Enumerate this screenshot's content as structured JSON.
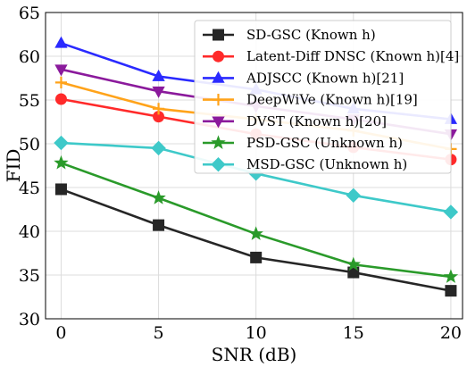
{
  "chart_data": {
    "type": "line",
    "xlabel": "SNR (dB)",
    "ylabel": "FID",
    "xlim": [
      -0.8,
      20.6
    ],
    "ylim": [
      30,
      65
    ],
    "x": [
      0,
      5,
      10,
      15,
      20
    ],
    "xticks": [
      0,
      5,
      10,
      15,
      20
    ],
    "yticks": [
      30,
      35,
      40,
      45,
      50,
      55,
      60,
      65
    ],
    "grid": true,
    "legend_position": "top-right",
    "series": [
      {
        "name": "SD-GSC (Known h)",
        "values": [
          44.8,
          40.7,
          37.0,
          35.3,
          33.2
        ],
        "color": "#262626",
        "marker": "square"
      },
      {
        "name": "Latent-Diff DNSC (Known h)[4]",
        "values": [
          55.1,
          53.1,
          51.1,
          49.6,
          48.2
        ],
        "color": "#ff2a2a",
        "marker": "circle"
      },
      {
        "name": "ADJSCC (Known h)[21]",
        "values": [
          61.5,
          57.7,
          56.2,
          54.0,
          52.8
        ],
        "color": "#2a2aff",
        "marker": "triangle-up"
      },
      {
        "name": "DeepWiVe (Known h)[19]",
        "values": [
          57.0,
          54.0,
          52.8,
          51.5,
          49.4
        ],
        "color": "#ffa31a",
        "marker": "plus"
      },
      {
        "name": "DVST (Known h)[20]",
        "values": [
          58.5,
          56.0,
          54.3,
          52.8,
          51.1
        ],
        "color": "#8b1a9c",
        "marker": "triangle-down"
      },
      {
        "name": "PSD-GSC (Unknown h)",
        "values": [
          47.8,
          43.8,
          39.7,
          36.2,
          34.8
        ],
        "color": "#2a9a2a",
        "marker": "star"
      },
      {
        "name": "MSD-GSC (Unknown h)",
        "values": [
          50.1,
          49.5,
          46.6,
          44.1,
          42.2
        ],
        "color": "#3ec9c9",
        "marker": "diamond"
      }
    ]
  }
}
